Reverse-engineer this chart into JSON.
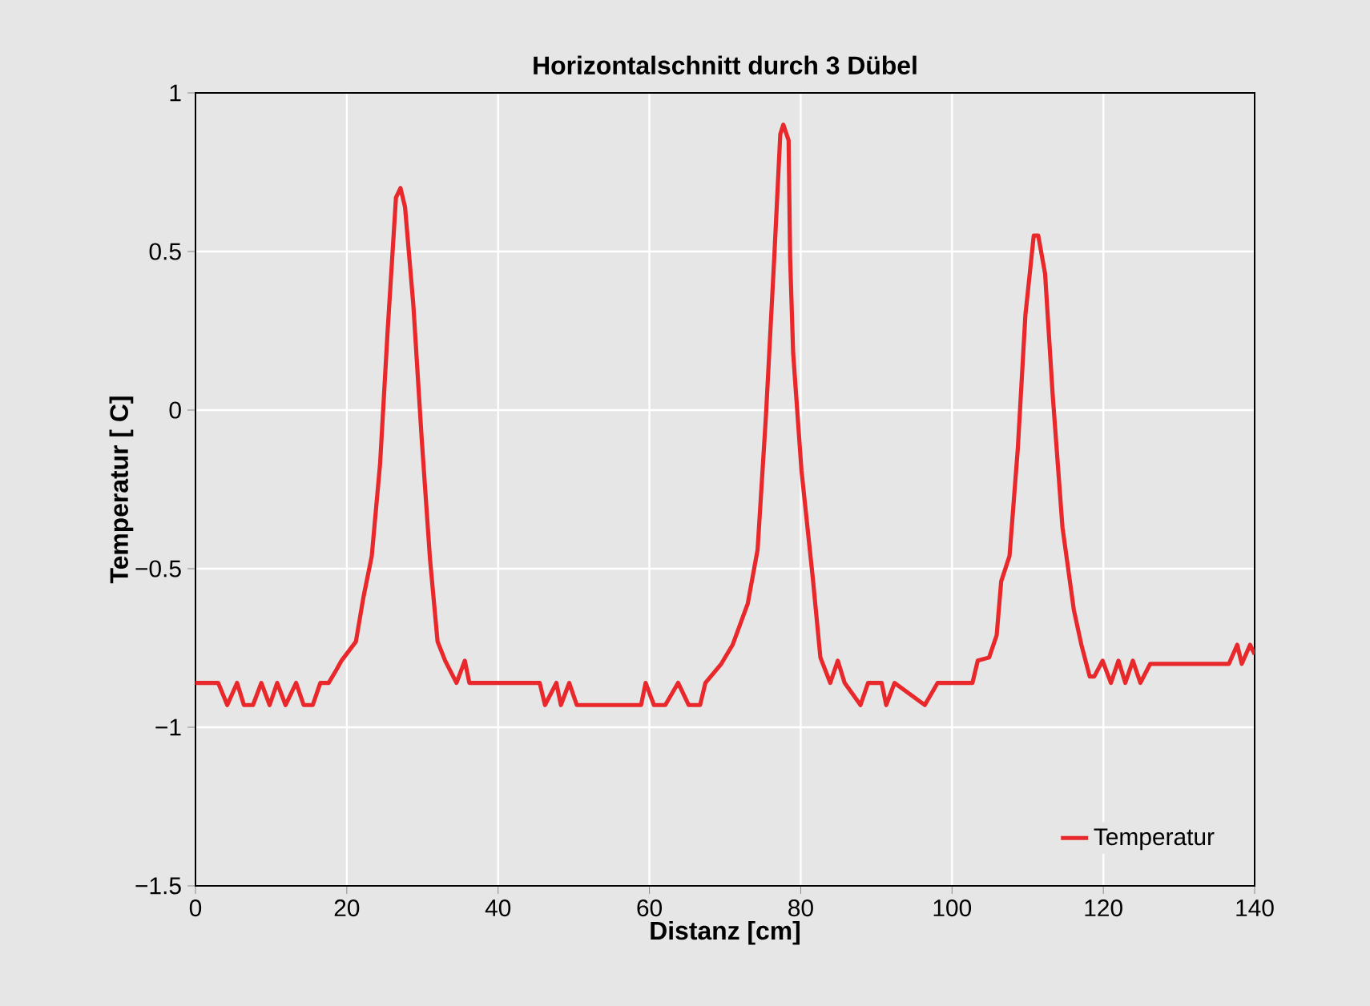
{
  "chart_data": {
    "type": "line",
    "title": "Horizontalschnitt durch 3 Dübel",
    "xlabel": "Distanz [cm]",
    "ylabel": "Temperatur [ C]",
    "x": [
      0,
      3.0,
      4.2,
      5.5,
      6.4,
      7.6,
      8.7,
      9.8,
      10.8,
      11.9,
      13.3,
      14.3,
      15.5,
      16.5,
      17.6,
      18.6,
      19.3,
      21.2,
      22.2,
      23.3,
      24.4,
      25.4,
      26.5,
      27.1,
      27.7,
      28.8,
      29.9,
      31.0,
      32.0,
      33.0,
      34.5,
      35.6,
      36.2,
      45.5,
      46.2,
      47.7,
      48.3,
      49.4,
      50.4,
      52.5,
      58.9,
      59.5,
      60.6,
      62.1,
      63.8,
      65.2,
      66.7,
      67.4,
      69.5,
      71.0,
      73.0,
      74.3,
      75.4,
      76.5,
      77.3,
      77.7,
      78.4,
      78.6,
      79.0,
      80.1,
      81.6,
      82.6,
      83.9,
      84.9,
      85.8,
      87.9,
      88.9,
      90.7,
      91.3,
      92.4,
      96.4,
      98.1,
      102.7,
      103.4,
      104.9,
      105.9,
      106.5,
      107.6,
      108.7,
      109.7,
      110.8,
      111.4,
      112.3,
      113.3,
      114.6,
      116.1,
      117.1,
      118.2,
      118.8,
      119.9,
      121.0,
      122.0,
      122.9,
      123.9,
      124.9,
      126.2,
      136.6,
      137.7,
      138.3,
      139.4,
      140
    ],
    "series": [
      {
        "name": "Temperatur",
        "color": "#e8282b",
        "values": [
          -0.86,
          -0.86,
          -0.93,
          -0.86,
          -0.93,
          -0.93,
          -0.86,
          -0.93,
          -0.86,
          -0.93,
          -0.86,
          -0.93,
          -0.93,
          -0.86,
          -0.86,
          -0.82,
          -0.79,
          -0.73,
          -0.59,
          -0.46,
          -0.17,
          0.25,
          0.67,
          0.7,
          0.64,
          0.33,
          -0.09,
          -0.47,
          -0.73,
          -0.79,
          -0.86,
          -0.79,
          -0.86,
          -0.86,
          -0.93,
          -0.86,
          -0.93,
          -0.86,
          -0.93,
          -0.93,
          -0.93,
          -0.86,
          -0.93,
          -0.93,
          -0.86,
          -0.93,
          -0.93,
          -0.86,
          -0.8,
          -0.74,
          -0.61,
          -0.44,
          -0.02,
          0.48,
          0.87,
          0.9,
          0.85,
          0.48,
          0.18,
          -0.19,
          -0.53,
          -0.78,
          -0.86,
          -0.79,
          -0.86,
          -0.93,
          -0.86,
          -0.86,
          -0.93,
          -0.86,
          -0.93,
          -0.86,
          -0.86,
          -0.79,
          -0.78,
          -0.71,
          -0.54,
          -0.46,
          -0.12,
          0.3,
          0.55,
          0.55,
          0.43,
          0.05,
          -0.37,
          -0.63,
          -0.74,
          -0.84,
          -0.84,
          -0.79,
          -0.86,
          -0.79,
          -0.86,
          -0.79,
          -0.86,
          -0.8,
          -0.8,
          -0.74,
          -0.8,
          -0.74,
          -0.77
        ]
      }
    ],
    "xlim": [
      0,
      140
    ],
    "ylim": [
      -1.5,
      1
    ],
    "xticks": [
      0,
      20,
      40,
      60,
      80,
      100,
      120,
      140
    ],
    "yticks": [
      {
        "value": -1.5,
        "label": "−1.5"
      },
      {
        "value": -1,
        "label": "−1"
      },
      {
        "value": -0.5,
        "label": "−0.5"
      },
      0,
      0.5,
      1
    ],
    "grid": true,
    "legend": "bottom right",
    "marker": "none",
    "line_style": "solid"
  }
}
